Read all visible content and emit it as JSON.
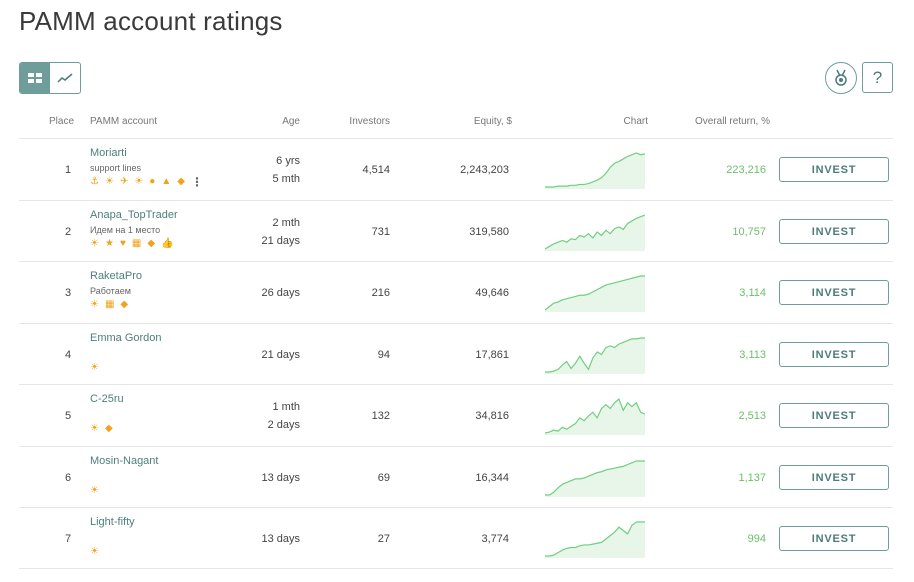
{
  "page": {
    "title": "PAMM account ratings"
  },
  "toolbar": {
    "view_table_icon": "table-icon",
    "view_chart_icon": "trend-chart-icon",
    "medal_icon": "medal-icon",
    "help_label": "?"
  },
  "colors": {
    "accent": "#6f9d9a",
    "return_green": "#6bbf6b",
    "badge_orange": "#f0a21a",
    "chart_line": "#6fcf7f"
  },
  "columns": {
    "place": "Place",
    "account": "PAMM account",
    "age": "Age",
    "investors": "Investors",
    "equity": "Equity, $",
    "chart": "Chart",
    "return": "Overall return, %"
  },
  "rows": [
    {
      "place": "1",
      "name": "Moriarti",
      "desc": "support lines",
      "age1": "6 yrs",
      "age2": "5 mth",
      "investors": "4,514",
      "equity": "2,243,203",
      "return": "223,216",
      "button": "INVEST",
      "badges": [
        "⚓",
        "☀",
        "✈",
        "☀",
        "●",
        "▲",
        "◆"
      ],
      "has_more": true,
      "series": [
        2,
        2,
        2,
        3,
        3,
        3,
        4,
        4,
        5,
        5,
        6,
        8,
        10,
        13,
        18,
        25,
        30,
        32,
        35,
        38,
        40,
        42,
        40,
        41
      ]
    },
    {
      "place": "2",
      "name": "Anapa_TopTrader",
      "desc": "Идем на 1 место",
      "age1": "2 mth",
      "age2": "21 days",
      "investors": "731",
      "equity": "319,580",
      "return": "10,757",
      "button": "INVEST",
      "badges": [
        "☀",
        "★",
        "♥",
        "▦",
        "◆",
        "👍"
      ],
      "has_more": false,
      "series": [
        2,
        5,
        8,
        10,
        12,
        10,
        14,
        13,
        18,
        16,
        20,
        15,
        22,
        18,
        24,
        20,
        26,
        28,
        25,
        32,
        35,
        38,
        40,
        42
      ]
    },
    {
      "place": "3",
      "name": "RaketaPro",
      "desc": "Работаем",
      "age1": "26 days",
      "age2": "",
      "investors": "216",
      "equity": "49,646",
      "return": "3,114",
      "button": "INVEST",
      "badges": [
        "☀",
        "▦",
        "◆"
      ],
      "has_more": false,
      "series": [
        2,
        5,
        8,
        9,
        11,
        12,
        13,
        14,
        15,
        15,
        16,
        18,
        20,
        22,
        24,
        25,
        26,
        27,
        28,
        29,
        30,
        31,
        32,
        32
      ]
    },
    {
      "place": "4",
      "name": "Emma Gordon",
      "desc": "",
      "age1": "21 days",
      "age2": "",
      "investors": "94",
      "equity": "17,861",
      "return": "3,113",
      "button": "INVEST",
      "badges": [
        "☀"
      ],
      "has_more": false,
      "series": [
        2,
        2,
        3,
        5,
        10,
        14,
        6,
        12,
        20,
        12,
        5,
        18,
        25,
        22,
        30,
        32,
        30,
        34,
        36,
        38,
        40,
        40,
        41,
        41
      ]
    },
    {
      "place": "5",
      "name": "C-25ru",
      "desc": "",
      "age1": "1 mth",
      "age2": "2 days",
      "investors": "132",
      "equity": "34,816",
      "return": "2,513",
      "button": "INVEST",
      "badges": [
        "☀",
        "◆"
      ],
      "has_more": false,
      "series": [
        2,
        3,
        5,
        4,
        8,
        6,
        9,
        12,
        18,
        15,
        20,
        24,
        18,
        28,
        32,
        28,
        34,
        38,
        26,
        34,
        30,
        34,
        24,
        22
      ]
    },
    {
      "place": "6",
      "name": "Mosin-Nagant",
      "desc": "",
      "age1": "13 days",
      "age2": "",
      "investors": "69",
      "equity": "16,344",
      "return": "1,137",
      "button": "INVEST",
      "badges": [
        "☀"
      ],
      "has_more": false,
      "series": [
        2,
        2,
        5,
        10,
        14,
        16,
        18,
        20,
        20,
        21,
        23,
        25,
        27,
        28,
        30,
        31,
        32,
        33,
        34,
        36,
        38,
        40,
        40,
        40
      ]
    },
    {
      "place": "7",
      "name": "Light-fifty",
      "desc": "",
      "age1": "13 days",
      "age2": "",
      "investors": "27",
      "equity": "3,774",
      "return": "994",
      "button": "INVEST",
      "badges": [
        "☀"
      ],
      "has_more": false,
      "series": [
        2,
        2,
        3,
        6,
        9,
        11,
        12,
        12,
        14,
        15,
        15,
        16,
        17,
        18,
        22,
        26,
        30,
        36,
        32,
        28,
        38,
        42,
        42,
        42
      ]
    }
  ]
}
